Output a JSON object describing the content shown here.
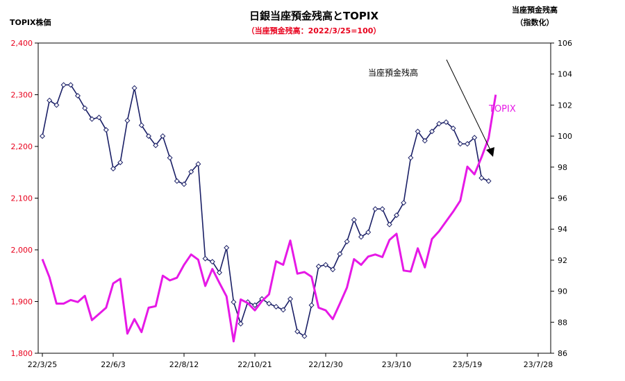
{
  "chart_data": {
    "type": "line",
    "title": "日銀当座預金残高とTOPIX",
    "subtitle": "（当座預金残高：2022/3/25=100）",
    "left_axis": {
      "label": "TOPIX株価",
      "range": [
        1800,
        2400
      ],
      "ticks": [
        "1,800",
        "1,900",
        "2,000",
        "2,100",
        "2,200",
        "2,300",
        "2,400"
      ],
      "color": "#e8001c"
    },
    "right_axis": {
      "label_line1": "当座預金残高",
      "label_line2": "（指数化）",
      "range": [
        86,
        106
      ],
      "ticks": [
        "86",
        "88",
        "90",
        "92",
        "94",
        "96",
        "98",
        "100",
        "102",
        "104",
        "106"
      ]
    },
    "x_ticks": [
      "22/3/25",
      "22/6/3",
      "22/8/12",
      "22/10/21",
      "22/12/30",
      "23/3/10",
      "23/5/19",
      "23/7/28"
    ],
    "weeks_total": 70,
    "series": [
      {
        "name": "当座預金残高",
        "axis": "right",
        "color": "#1a1f66",
        "marker": "diamond",
        "values": [
          100,
          102.3,
          102,
          103.3,
          103.3,
          102.6,
          101.8,
          101.1,
          101.2,
          100.4,
          97.9,
          98.3,
          101,
          103.1,
          100.7,
          100,
          99.4,
          100,
          98.6,
          97.1,
          96.9,
          97.7,
          98.2,
          92.1,
          91.9,
          91.2,
          92.8,
          89.3,
          87.9,
          89.3,
          89.1,
          89.5,
          89.2,
          89,
          88.8,
          89.5,
          87.4,
          87.1,
          89.1,
          91.6,
          91.7,
          91.4,
          92.4,
          93.2,
          94.6,
          93.5,
          93.8,
          95.3,
          95.3,
          94.3,
          94.9,
          95.7,
          98.6,
          100.3,
          99.7,
          100.3,
          100.8,
          100.9,
          100.5,
          99.5,
          99.5,
          99.9,
          97.3,
          97.1
        ]
      },
      {
        "name": "TOPIX",
        "axis": "left",
        "color": "#e619e6",
        "values": [
          1982,
          1947,
          1896,
          1896,
          1903,
          1899,
          1911,
          1864,
          1876,
          1888,
          1935,
          1944,
          1838,
          1866,
          1841,
          1888,
          1891,
          1950,
          1941,
          1946,
          1971,
          1991,
          1981,
          1930,
          1963,
          1936,
          1910,
          1823,
          1904,
          1897,
          1883,
          1901,
          1914,
          1978,
          1971,
          2018,
          1954,
          1957,
          1948,
          1888,
          1883,
          1866,
          1896,
          1927,
          1982,
          1971,
          1987,
          1991,
          1986,
          2019,
          2031,
          1960,
          1958,
          2003,
          1966,
          2021,
          2036,
          2055,
          2074,
          2095,
          2161,
          2146,
          2179,
          2216,
          2300
        ]
      }
    ],
    "annotations": [
      {
        "text": "当座預金残高"
      },
      {
        "text": "TOPIX",
        "color": "#e619e6"
      }
    ]
  }
}
